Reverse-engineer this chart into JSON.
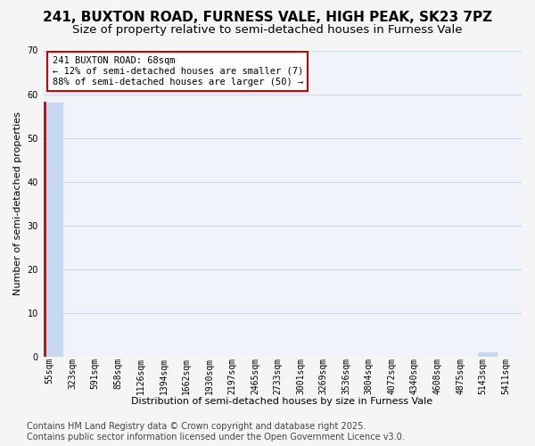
{
  "title": "241, BUXTON ROAD, FURNESS VALE, HIGH PEAK, SK23 7PZ",
  "subtitle": "Size of property relative to semi-detached houses in Furness Vale",
  "xlabel": "Distribution of semi-detached houses by size in Furness Vale",
  "ylabel": "Number of semi-detached properties",
  "bin_labels": [
    "55sqm",
    "323sqm",
    "591sqm",
    "858sqm",
    "1126sqm",
    "1394sqm",
    "1662sqm",
    "1930sqm",
    "2197sqm",
    "2465sqm",
    "2733sqm",
    "3001sqm",
    "3269sqm",
    "3536sqm",
    "3804sqm",
    "4072sqm",
    "4340sqm",
    "4608sqm",
    "4875sqm",
    "5143sqm",
    "5411sqm"
  ],
  "bar_heights": [
    58,
    0,
    0,
    0,
    0,
    0,
    0,
    0,
    0,
    0,
    0,
    0,
    0,
    0,
    0,
    0,
    0,
    0,
    0,
    1,
    0
  ],
  "bar_color": "#c5d8f0",
  "highlight_bar_left_color": "#cc0000",
  "highlight_bar_index": 0,
  "ylim": [
    0,
    70
  ],
  "yticks": [
    0,
    10,
    20,
    30,
    40,
    50,
    60,
    70
  ],
  "annotation_line1": "241 BUXTON ROAD: 68sqm",
  "annotation_line2": "← 12% of semi-detached houses are smaller (7)",
  "annotation_line3": "88% of semi-detached houses are larger (50) →",
  "annotation_box_edgecolor": "#cc0000",
  "annotation_box_facecolor": "white",
  "footer_text": "Contains HM Land Registry data © Crown copyright and database right 2025.\nContains public sector information licensed under the Open Government Licence v3.0.",
  "fig_background_color": "#f5f5f5",
  "plot_bg_color": "#f0f4fa",
  "grid_color": "#ccd9ea",
  "title_fontsize": 11,
  "subtitle_fontsize": 9.5,
  "axis_label_fontsize": 8,
  "tick_fontsize": 7,
  "annotation_fontsize": 7.5,
  "footer_fontsize": 7
}
